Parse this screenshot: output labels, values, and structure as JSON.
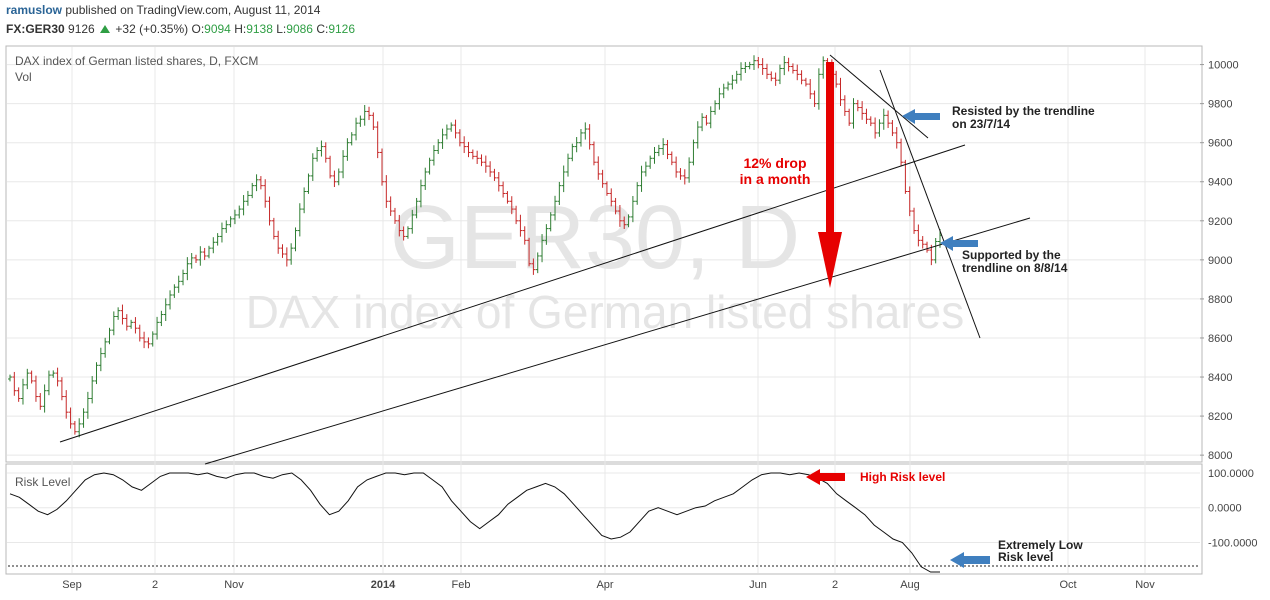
{
  "header": {
    "user": "ramuslow",
    "published_text": "published on TradingView.com, August 11, 2014",
    "symbol": "FX:GER30",
    "last": "9126",
    "change": "+32 (+0.35%)",
    "o_label": "O:",
    "o": "9094",
    "h_label": "H:",
    "h": "9138",
    "l_label": "L:",
    "l": "9086",
    "c_label": "C:",
    "c": "9126"
  },
  "main": {
    "title": "DAX index of German listed shares, D, FXCM",
    "vol_label": "Vol",
    "watermark_symbol": "GER30, D",
    "watermark_desc": "DAX index of German listed shares"
  },
  "annotations": {
    "resisted": [
      "Resisted by the trendline",
      "on 23/7/14"
    ],
    "supported": [
      "Supported by the",
      "trendline on 8/8/14"
    ],
    "drop": [
      "12% drop",
      "in a month"
    ],
    "high_risk": "High Risk level",
    "low_risk": [
      "Extremely Low",
      "Risk level"
    ]
  },
  "colors": {
    "up_bar": "#2e7d32",
    "down_bar": "#c62828",
    "annotation_red": "#e60000",
    "arrow_blue": "#3f7fbf",
    "grid": "#e8e8e8"
  },
  "chart_data": [
    {
      "type": "ohlc",
      "title": "DAX index of German listed shares, D, FXCM",
      "x_ticks": [
        "Sep",
        "2",
        "Nov",
        "2014",
        "Feb",
        "Apr",
        "Jun",
        "2",
        "Aug",
        "Oct",
        "Nov"
      ],
      "y_ticks": [
        8000,
        8200,
        8400,
        8600,
        8800,
        9000,
        9200,
        9400,
        9600,
        9800,
        10000
      ],
      "ylim": [
        7970,
        10090
      ],
      "series": [
        {
          "values": [
            8400,
            8330,
            8290,
            8360,
            8420,
            8380,
            8300,
            8250,
            8330,
            8410,
            8420,
            8380,
            8300,
            8220,
            8160,
            8120,
            8160,
            8220,
            8290,
            8380,
            8460,
            8520,
            8580,
            8640,
            8710,
            8740,
            8700,
            8660,
            8680,
            8650,
            8600,
            8580,
            8570,
            8620,
            8680,
            8720,
            8770,
            8820,
            8860,
            8890,
            8930,
            8980,
            9010,
            9000,
            9040,
            9020,
            9060,
            9090,
            9120,
            9160,
            9180,
            9210,
            9230,
            9260,
            9300,
            9330,
            9380,
            9410,
            9380,
            9300,
            9200,
            9120,
            9060,
            9030,
            9000,
            9060,
            9150,
            9260,
            9350,
            9430,
            9520,
            9560,
            9580,
            9520,
            9430,
            9400,
            9450,
            9530,
            9600,
            9640,
            9700,
            9720,
            9760,
            9740,
            9680,
            9550,
            9400,
            9300,
            9250,
            9200,
            9150,
            9120,
            9160,
            9230,
            9300,
            9380,
            9450,
            9510,
            9560,
            9600,
            9640,
            9670,
            9690,
            9650,
            9600,
            9580,
            9550,
            9530,
            9520,
            9500,
            9480,
            9450,
            9420,
            9380,
            9340,
            9300,
            9260,
            9200,
            9150,
            9100,
            8980,
            8950,
            9020,
            9100,
            9160,
            9230,
            9300,
            9380,
            9450,
            9520,
            9580,
            9600,
            9650,
            9670,
            9590,
            9500,
            9440,
            9390,
            9340,
            9300,
            9250,
            9200,
            9180,
            9220,
            9300,
            9380,
            9450,
            9480,
            9520,
            9550,
            9570,
            9590,
            9540,
            9500,
            9450,
            9430,
            9420,
            9500,
            9600,
            9680,
            9730,
            9700,
            9760,
            9800,
            9850,
            9880,
            9900,
            9920,
            9950,
            9980,
            9990,
            10000,
            10020,
            10000,
            9980,
            9950,
            9930,
            9920,
            9980,
            10010,
            9990,
            9970,
            9950,
            9920,
            9900,
            9850,
            9800,
            9950,
            10020,
            10000,
            9950,
            9900,
            9820,
            9760,
            9700,
            9800,
            9780,
            9750,
            9720,
            9700,
            9650,
            9700,
            9740,
            9700,
            9650,
            9600,
            9500,
            9350,
            9250,
            9150,
            9100,
            9080,
            9050,
            9000,
            9094,
            9126
          ]
        }
      ]
    },
    {
      "type": "line",
      "title": "Risk Level",
      "y_ticks": [
        100,
        0,
        -100
      ],
      "ylim": [
        -185,
        120
      ],
      "series": [
        {
          "name": "Risk Level",
          "values": [
            40,
            30,
            10,
            -10,
            -20,
            -5,
            20,
            50,
            80,
            95,
            100,
            95,
            80,
            60,
            50,
            70,
            90,
            100,
            100,
            100,
            95,
            100,
            90,
            85,
            95,
            100,
            100,
            90,
            85,
            95,
            100,
            80,
            50,
            10,
            -20,
            -10,
            20,
            60,
            80,
            90,
            100,
            100,
            95,
            100,
            100,
            80,
            60,
            20,
            -10,
            -40,
            -60,
            -40,
            -20,
            10,
            30,
            50,
            60,
            70,
            60,
            40,
            10,
            -20,
            -50,
            -80,
            -90,
            -85,
            -70,
            -40,
            -10,
            0,
            -10,
            -20,
            -10,
            0,
            5,
            20,
            30,
            40,
            60,
            80,
            95,
            100,
            100,
            95,
            100,
            95,
            85,
            70,
            40,
            20,
            0,
            -20,
            -50,
            -70,
            -90,
            -100,
            -130,
            -170,
            -185,
            -185
          ]
        }
      ]
    }
  ]
}
